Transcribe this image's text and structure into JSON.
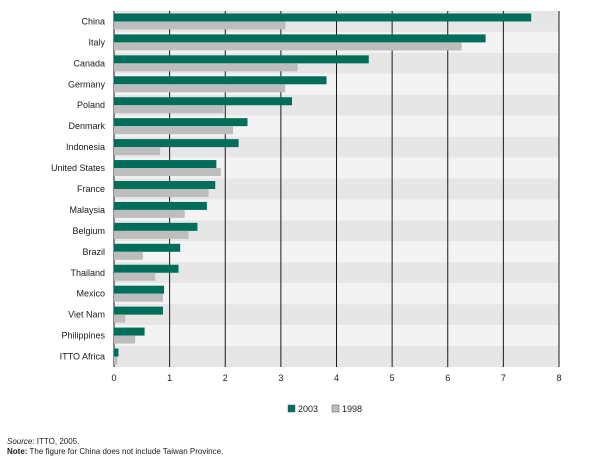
{
  "chart_data": {
    "type": "bar",
    "orientation": "horizontal",
    "categories": [
      "China",
      "Italy",
      "Canada",
      "Germany",
      "Poland",
      "Denmark",
      "Indonesia",
      "United States",
      "France",
      "Malaysia",
      "Belgium",
      "Brazil",
      "Thailand",
      "Mexico",
      "Viet Nam",
      "Philippines",
      "ITTO Africa"
    ],
    "series": [
      {
        "name": "2003",
        "color": "#006e5a",
        "values": [
          7.5,
          6.68,
          4.58,
          3.82,
          3.2,
          2.4,
          2.24,
          1.84,
          1.82,
          1.67,
          1.5,
          1.19,
          1.16,
          0.9,
          0.88,
          0.55,
          0.08
        ]
      },
      {
        "name": "1998",
        "color": "#bdbdbd",
        "values": [
          3.08,
          6.25,
          3.3,
          3.08,
          1.97,
          2.14,
          0.83,
          1.92,
          1.7,
          1.27,
          1.34,
          0.52,
          0.74,
          0.88,
          0.2,
          0.38,
          0.06
        ]
      }
    ],
    "xlim": [
      0,
      8
    ],
    "xticks": [
      "0",
      "1",
      "2",
      "3",
      "4",
      "5",
      "6",
      "7",
      "8"
    ],
    "grid": true,
    "legend_position": "bottom-center",
    "title": "",
    "xlabel": "",
    "ylabel": ""
  },
  "footer": {
    "source_label": "Source:",
    "source_text": " ITTO, 2005.",
    "note_label": "Note:",
    "note_text": " The figure for China does not include Taiwan Province."
  }
}
